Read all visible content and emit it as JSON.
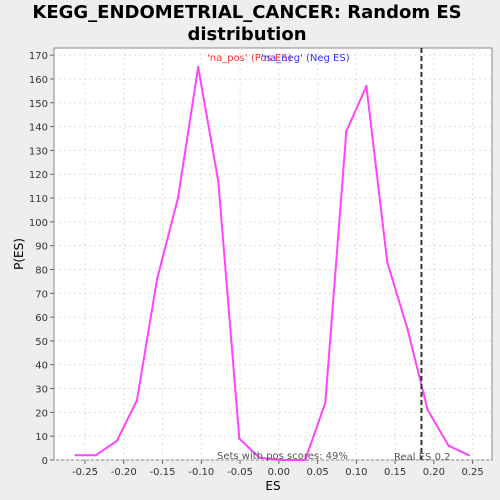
{
  "chart_data": {
    "type": "line",
    "title": "KEGG_ENDOMETRIAL_CANCER: Random ES distribution",
    "title_lines": [
      "KEGG_ENDOMETRIAL_CANCER: Random ES",
      "distribution"
    ],
    "xlabel": "ES",
    "ylabel": "P(ES)",
    "xlim": [
      -0.29,
      0.275
    ],
    "ylim": [
      0,
      173
    ],
    "x_ticks": [
      -0.25,
      -0.2,
      -0.15,
      -0.1,
      -0.05,
      0.0,
      0.05,
      0.1,
      0.15,
      0.2,
      0.25
    ],
    "x_tick_labels": [
      "-0.25",
      "-0.20",
      "-0.15",
      "-0.10",
      "-0.05",
      "0.00",
      "0.05",
      "0.10",
      "0.15",
      "0.20",
      "0.25"
    ],
    "y_ticks": [
      0,
      10,
      20,
      30,
      40,
      50,
      60,
      70,
      80,
      90,
      100,
      110,
      120,
      130,
      140,
      150,
      160,
      170
    ],
    "y_tick_labels": [
      "0",
      "10",
      "20",
      "30",
      "40",
      "50",
      "60",
      "70",
      "80",
      "90",
      "100",
      "110",
      "120",
      "130",
      "140",
      "150",
      "160",
      "170"
    ],
    "grid": true,
    "legend": {
      "placement": "top-center",
      "entries": [
        {
          "label": "'na_pos' (Pos ES)",
          "color": "#ff3333"
        },
        {
          "label": "'na_neg' (Neg ES)",
          "color": "#3333ff"
        }
      ]
    },
    "series": [
      {
        "color": "#ff44ff",
        "x": [
          -0.262,
          -0.236,
          -0.209,
          -0.183,
          -0.157,
          -0.13,
          -0.104,
          -0.078,
          -0.051,
          -0.025,
          0.001,
          0.028,
          0.034,
          0.06,
          0.087,
          0.113,
          0.14,
          0.166,
          0.192,
          0.219,
          0.245
        ],
        "y": [
          2,
          2,
          8,
          25,
          76,
          110,
          165,
          117,
          9,
          1,
          0,
          0,
          0,
          24,
          138,
          157,
          83,
          55,
          21,
          6,
          2
        ]
      }
    ],
    "reference_line": {
      "x": 0.184,
      "label": "Real ES 0.2",
      "style": "dashed",
      "color": "#333333"
    },
    "annotations": [
      {
        "text": "Sets with pos scores: 49%"
      }
    ]
  }
}
